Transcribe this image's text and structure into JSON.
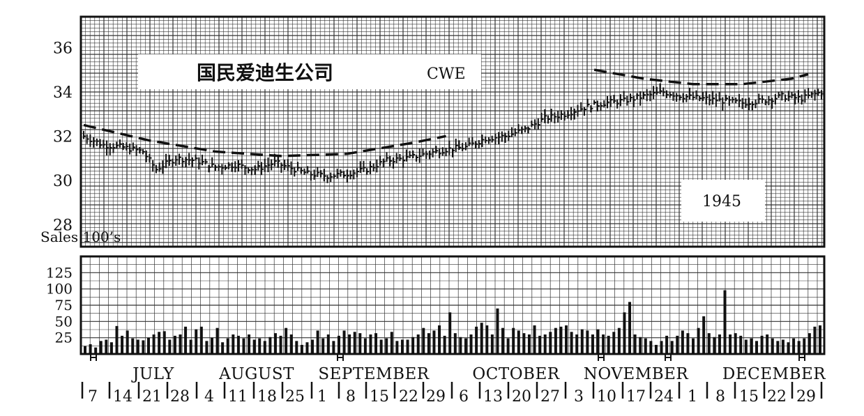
{
  "chart_data": [
    {
      "type": "bar",
      "panel": "price",
      "title": "国民爱迪生公司",
      "ticker": "CWE",
      "year": "1945",
      "ylim": [
        27,
        37.4
      ],
      "yticks": [
        "28",
        "30",
        "32",
        "34",
        "36"
      ],
      "grid": true,
      "trend_lines": [
        {
          "style": "dashed",
          "points": [
            [
              0,
              32.5
            ],
            [
              20,
              31.8
            ],
            [
              40,
              31.3
            ],
            [
              60,
              31.1
            ],
            [
              80,
              31.2
            ],
            [
              100,
              31.7
            ],
            [
              110,
              32.0
            ]
          ]
        },
        {
          "style": "dashed",
          "points": [
            [
              155,
              35.0
            ],
            [
              170,
              34.6
            ],
            [
              185,
              34.35
            ],
            [
              200,
              34.35
            ],
            [
              215,
              34.6
            ],
            [
              220,
              34.8
            ]
          ]
        }
      ],
      "close_series": [
        {
          "x": 0,
          "y": 32.0
        },
        {
          "x": 6,
          "y": 31.6
        },
        {
          "x": 12,
          "y": 31.5
        },
        {
          "x": 18,
          "y": 31.3
        },
        {
          "x": 22,
          "y": 30.5
        },
        {
          "x": 28,
          "y": 31.0
        },
        {
          "x": 34,
          "y": 30.9
        },
        {
          "x": 40,
          "y": 30.6
        },
        {
          "x": 46,
          "y": 30.7
        },
        {
          "x": 52,
          "y": 30.5
        },
        {
          "x": 58,
          "y": 30.8
        },
        {
          "x": 64,
          "y": 30.5
        },
        {
          "x": 68,
          "y": 30.3
        },
        {
          "x": 74,
          "y": 30.2
        },
        {
          "x": 80,
          "y": 30.3
        },
        {
          "x": 86,
          "y": 30.5
        },
        {
          "x": 92,
          "y": 30.9
        },
        {
          "x": 98,
          "y": 31.0
        },
        {
          "x": 104,
          "y": 31.2
        },
        {
          "x": 110,
          "y": 31.4
        },
        {
          "x": 116,
          "y": 31.5
        },
        {
          "x": 122,
          "y": 31.9
        },
        {
          "x": 128,
          "y": 32.0
        },
        {
          "x": 134,
          "y": 32.3
        },
        {
          "x": 140,
          "y": 32.8
        },
        {
          "x": 146,
          "y": 33.0
        },
        {
          "x": 152,
          "y": 33.3
        },
        {
          "x": 158,
          "y": 33.5
        },
        {
          "x": 164,
          "y": 33.6
        },
        {
          "x": 170,
          "y": 33.8
        },
        {
          "x": 176,
          "y": 34.0
        },
        {
          "x": 182,
          "y": 33.8
        },
        {
          "x": 188,
          "y": 33.7
        },
        {
          "x": 194,
          "y": 33.6
        },
        {
          "x": 200,
          "y": 33.5
        },
        {
          "x": 206,
          "y": 33.6
        },
        {
          "x": 212,
          "y": 33.8
        },
        {
          "x": 218,
          "y": 33.7
        },
        {
          "x": 224,
          "y": 34.0
        }
      ]
    },
    {
      "type": "bar",
      "panel": "volume",
      "ylabel": "Sales 100’s",
      "yticks": [
        "25",
        "50",
        "75",
        "100",
        "125"
      ],
      "ylim": [
        0,
        150
      ],
      "grid": true,
      "volume": [
        12,
        15,
        10,
        20,
        22,
        18,
        43,
        28,
        36,
        24,
        22,
        21,
        25,
        30,
        34,
        35,
        22,
        28,
        30,
        42,
        22,
        38,
        42,
        20,
        25,
        40,
        18,
        24,
        30,
        28,
        24,
        30,
        22,
        24,
        20,
        26,
        32,
        28,
        40,
        30,
        20,
        14,
        18,
        22,
        36,
        24,
        30,
        20,
        28,
        36,
        30,
        34,
        32,
        24,
        30,
        32,
        22,
        24,
        34,
        20,
        22,
        22,
        26,
        30,
        40,
        32,
        36,
        44,
        28,
        64,
        32,
        26,
        24,
        30,
        42,
        48,
        44,
        30,
        70,
        40,
        24,
        40,
        36,
        32,
        30,
        44,
        28,
        30,
        34,
        40,
        42,
        44,
        34,
        30,
        38,
        36,
        30,
        38,
        30,
        28,
        34,
        40,
        64,
        80,
        30,
        26,
        24,
        20,
        14,
        20,
        28,
        20,
        28,
        36,
        32,
        24,
        40,
        58,
        32,
        26,
        30,
        98,
        30,
        32,
        28,
        22,
        24,
        20,
        28,
        30,
        24,
        20,
        22,
        18,
        24,
        20,
        24,
        32,
        42,
        44
      ],
      "months": [
        "JULY",
        "AUGUST",
        "SEPTEMBER",
        "OCTOBER",
        "NOVEMBER",
        "DECEMBER"
      ],
      "days": [
        "7",
        "14",
        "21",
        "28",
        "4",
        "11",
        "18",
        "25",
        "1",
        "8",
        "15",
        "22",
        "29",
        "6",
        "13",
        "20",
        "27",
        "3",
        "10",
        "17",
        "24",
        "1",
        "8",
        "15",
        "22",
        "29"
      ]
    }
  ]
}
